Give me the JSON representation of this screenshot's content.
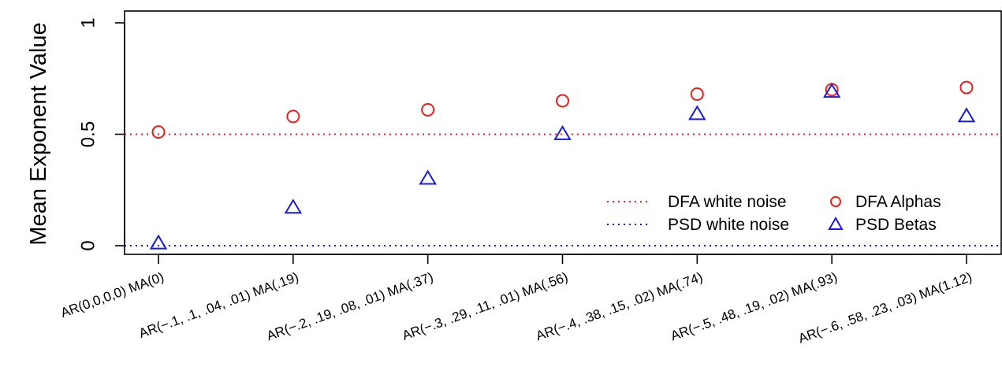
{
  "chart_data": {
    "type": "scatter",
    "ylabel": "Mean Exponent Value",
    "xlabel": "",
    "ylim": [
      0,
      1
    ],
    "yticks": [
      {
        "value": 0,
        "label": "0"
      },
      {
        "value": 0.5,
        "label": "0.5"
      },
      {
        "value": 1,
        "label": "1"
      }
    ],
    "categories": [
      "AR(0,0,0,0) MA(0)",
      "AR(−.1, .1, .04, .01) MA(.19)",
      "AR(−.2, .19, .08, .01) MA(.37)",
      "AR(−.3, .29, .11, .01) MA(.56)",
      "AR(−.4, .38, .15, .02) MA(.74)",
      "AR(−.5, .48, .19, .02) MA(.93)",
      "AR(−.6, .58, .23, .03) MA(1.12)"
    ],
    "series": [
      {
        "name": "DFA Alphas",
        "marker": "circle",
        "color": "#e8201e",
        "values": [
          0.51,
          0.58,
          0.61,
          0.65,
          0.68,
          0.7,
          0.71
        ]
      },
      {
        "name": "PSD Betas",
        "marker": "triangle",
        "color": "#1a1adb",
        "values": [
          0.01,
          0.17,
          0.3,
          0.5,
          0.59,
          0.69,
          0.58
        ]
      }
    ],
    "reference_lines": [
      {
        "name": "DFA white noise",
        "value": 0.5,
        "color": "#e8201e",
        "style": "dotted"
      },
      {
        "name": "PSD white noise",
        "value": 0,
        "color": "#1a1adb",
        "style": "dotted"
      }
    ],
    "legend_placement": "bottom-right",
    "grid": false
  }
}
